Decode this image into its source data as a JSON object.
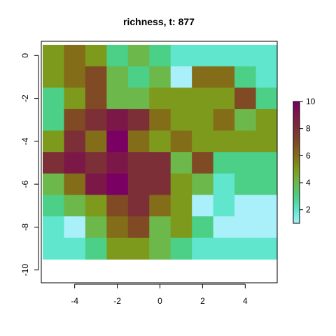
{
  "chart_data": {
    "type": "heatmap",
    "title": "richness, t: 877",
    "xlabel": "",
    "ylabel": "",
    "x": [
      -5,
      -4,
      -3,
      -2,
      -1,
      0,
      1,
      2,
      3,
      4,
      5
    ],
    "y": [
      0,
      -1,
      -2,
      -3,
      -4,
      -5,
      -6,
      -7,
      -8,
      -9,
      -10
    ],
    "xlim": [
      -5.5,
      5.5
    ],
    "ylim": [
      -10.5,
      0.5
    ],
    "x_ticks": [
      -4,
      -2,
      0,
      2,
      4
    ],
    "y_ticks": [
      0,
      -2,
      -4,
      -6,
      -8,
      -10
    ],
    "values": [
      [
        5,
        6,
        5,
        3,
        4,
        3,
        2,
        2,
        2,
        2,
        2
      ],
      [
        5,
        6,
        7,
        4,
        3,
        4,
        1,
        6,
        6,
        3,
        2
      ],
      [
        3,
        5,
        7,
        4,
        4,
        5,
        5,
        5,
        5,
        7,
        3
      ],
      [
        3,
        7,
        8,
        9,
        8,
        6,
        5,
        5,
        6,
        4,
        5
      ],
      [
        5,
        8,
        6,
        10,
        6,
        5,
        6,
        5,
        5,
        5,
        5
      ],
      [
        8,
        9,
        8,
        9,
        8,
        8,
        4,
        7,
        3,
        3,
        3
      ],
      [
        4,
        6,
        9,
        10,
        8,
        8,
        5,
        4,
        2,
        3,
        3
      ],
      [
        3,
        4,
        5,
        7,
        8,
        6,
        5,
        1,
        2,
        1,
        1
      ],
      [
        2,
        1,
        4,
        6,
        7,
        4,
        5,
        3,
        1,
        1,
        1
      ],
      [
        2,
        2,
        3,
        5,
        5,
        4,
        3,
        2,
        2,
        2,
        2
      ]
    ],
    "rows_y": [
      0,
      -1,
      -2,
      -3,
      -4,
      -5,
      -6,
      -7,
      -8,
      -9
    ],
    "zlim": [
      1,
      10
    ],
    "colorbar": {
      "ticks": [
        2,
        4,
        6,
        8,
        10
      ],
      "position": "right"
    },
    "palette": [
      {
        "v": 1,
        "color": "#aaf0fa"
      },
      {
        "v": 2,
        "color": "#5fe6cc"
      },
      {
        "v": 3,
        "color": "#4ccf86"
      },
      {
        "v": 4,
        "color": "#6cb84a"
      },
      {
        "v": 5,
        "color": "#7e9a1c"
      },
      {
        "v": 6,
        "color": "#836d18"
      },
      {
        "v": 7,
        "color": "#7f4a24"
      },
      {
        "v": 8,
        "color": "#7d2f38"
      },
      {
        "v": 9,
        "color": "#7c1848"
      },
      {
        "v": 10,
        "color": "#7a0064"
      }
    ]
  }
}
